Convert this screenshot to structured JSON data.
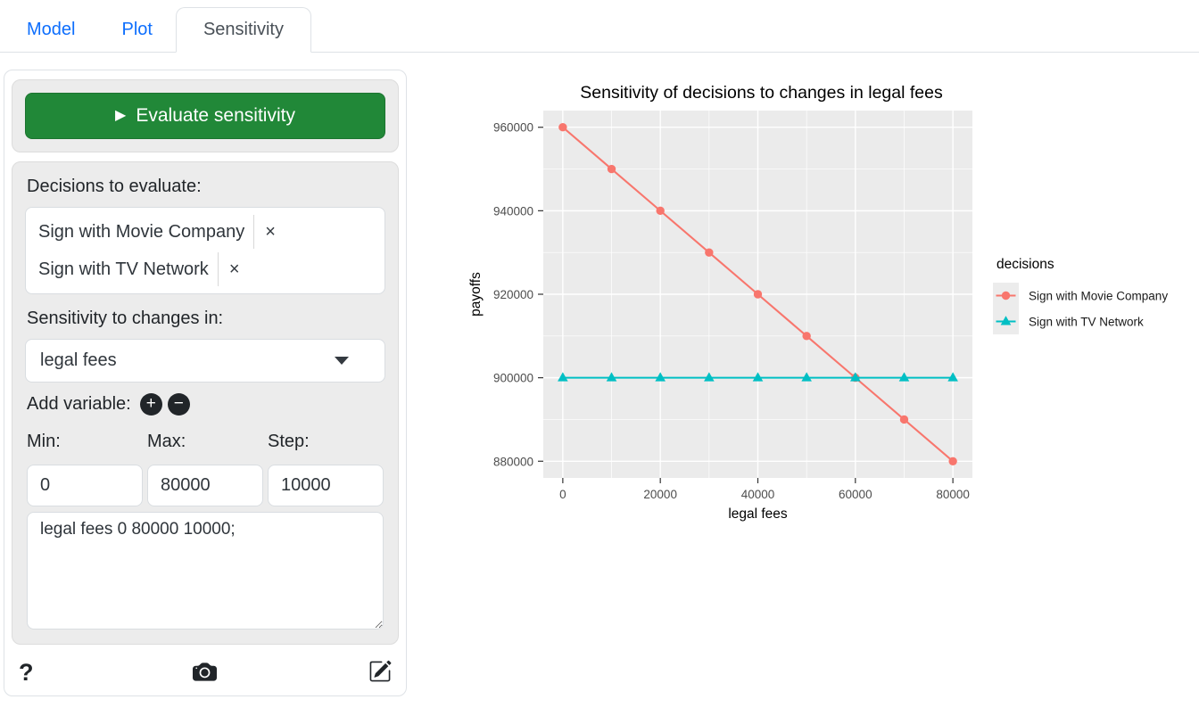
{
  "tabs": [
    {
      "label": "Model",
      "active": false
    },
    {
      "label": "Plot",
      "active": false
    },
    {
      "label": "Sensitivity",
      "active": true
    }
  ],
  "sidebar": {
    "evaluate_button_label": "Evaluate sensitivity",
    "play_icon": "▶",
    "decisions_label": "Decisions to evaluate:",
    "decisions": [
      {
        "label": "Sign with Movie Company",
        "remove": "×"
      },
      {
        "label": "Sign with TV Network",
        "remove": "×"
      }
    ],
    "sensitivity_label": "Sensitivity to changes in:",
    "variable_selected": "legal fees",
    "add_variable_label": "Add variable:",
    "add_icon": "+",
    "subtract_icon": "−",
    "range_labels": {
      "min": "Min:",
      "max": "Max:",
      "step": "Step:"
    },
    "range_values": {
      "min": "0",
      "max": "80000",
      "step": "10000"
    },
    "script_text": "legal fees 0 80000 10000;",
    "help_icon": "?"
  },
  "chart_data": {
    "type": "line",
    "title": "Sensitivity of decisions to changes in legal fees",
    "xlabel": "legal fees",
    "ylabel": "payoffs",
    "legend_title": "decisions",
    "legend_position": "right",
    "grid": true,
    "panel_bg": "#EBEBEB",
    "x": [
      0,
      10000,
      20000,
      30000,
      40000,
      50000,
      60000,
      70000,
      80000
    ],
    "series": [
      {
        "name": "Sign with Movie Company",
        "color": "#F8766D",
        "marker": "circle",
        "values": [
          960000,
          950000,
          940000,
          930000,
          920000,
          910000,
          900000,
          890000,
          880000
        ]
      },
      {
        "name": "Sign with TV Network",
        "color": "#00BFC4",
        "marker": "triangle",
        "values": [
          900000,
          900000,
          900000,
          900000,
          900000,
          900000,
          900000,
          900000,
          900000
        ]
      }
    ],
    "xticks": [
      0,
      20000,
      40000,
      60000,
      80000
    ],
    "yticks": [
      880000,
      900000,
      920000,
      940000,
      960000
    ],
    "xlim": [
      -4000,
      84000
    ],
    "ylim": [
      876000,
      964000
    ]
  },
  "colors": {
    "tab_link": "#0d6efd",
    "evaluate_button": "#218838",
    "icon_dark": "#212529",
    "tick_label": "#4d4d4d"
  }
}
